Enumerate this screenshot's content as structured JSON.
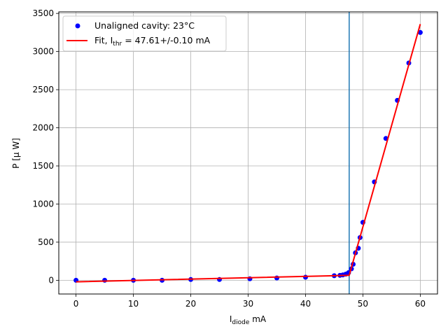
{
  "chart_data": {
    "type": "scatter",
    "xlabel": {
      "main": "I",
      "sub": "diode",
      "rest": " mA"
    },
    "ylabel": "P [μ W]",
    "xlim": [
      -3,
      63
    ],
    "ylim": [
      -180,
      3520
    ],
    "x_ticks": [
      0,
      10,
      20,
      30,
      40,
      50,
      60
    ],
    "y_ticks": [
      0,
      500,
      1000,
      1500,
      2000,
      2500,
      3000,
      3500
    ],
    "grid": true,
    "legend_position": "top-left",
    "series": [
      {
        "name": "Unaligned cavity: 23°C",
        "kind": "scatter",
        "color": "#0000ff",
        "x": [
          0,
          5,
          10,
          15,
          20,
          25,
          30.3,
          35,
          40,
          45,
          46,
          46.5,
          47,
          47.5,
          48,
          48.3,
          48.7,
          49.2,
          49.5,
          50,
          52,
          54,
          56,
          58,
          60
        ],
        "y": [
          0,
          0,
          0,
          0,
          10,
          10,
          20,
          30,
          40,
          60,
          65,
          70,
          80,
          100,
          150,
          210,
          360,
          420,
          560,
          760,
          1290,
          1860,
          2360,
          2850,
          3250
        ]
      },
      {
        "name": "Fit, I",
        "name_sub": "thr",
        "name_rest": " = 47.61+/-0.10 mA",
        "kind": "line",
        "color": "#ff0000",
        "x": [
          0,
          45,
          47.61,
          60
        ],
        "y": [
          -20,
          60,
          65,
          3360
        ]
      }
    ],
    "vline": {
      "x": 47.61,
      "color": "#1f77b4"
    }
  }
}
